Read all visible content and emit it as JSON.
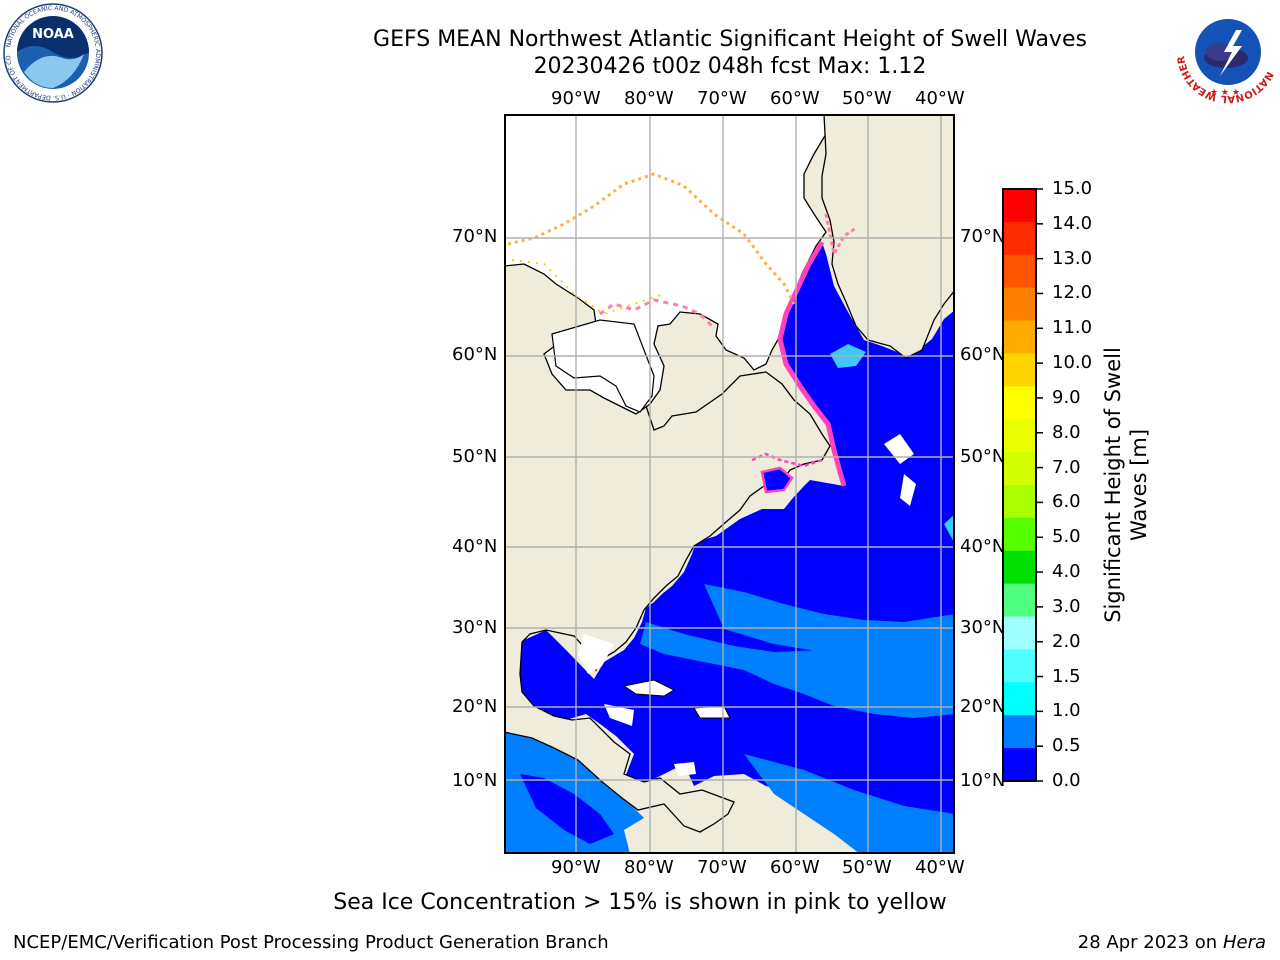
{
  "header": {
    "title_line1": "GEFS MEAN Northwest Atlantic Significant Height of Swell Waves",
    "title_line2": "20230426 t00z 048h fcst   Max: 1.12"
  },
  "logos": {
    "noaa": {
      "text": "NOAA",
      "ring_text": "NATIONAL OCEANIC AND ATMOSPHERIC ADMINISTRATION · U.S. DEPARTMENT OF COMMERCE"
    },
    "nws": {
      "ring_text": "NATIONAL WEATHER SERVICE"
    }
  },
  "map": {
    "lon_labels": [
      "90°W",
      "80°W",
      "70°W",
      "60°W",
      "50°W",
      "40°W"
    ],
    "lat_labels": [
      "70°N",
      "60°N",
      "50°N",
      "40°N",
      "30°N",
      "20°N",
      "10°N"
    ],
    "colors": {
      "land": "#efecdc",
      "ice_white": "#ffffff",
      "swell_low": "#0000ff",
      "swell_mid": "#0080ff",
      "gridline": "#b0b0b0",
      "ice_edge": [
        "#ff40c0",
        "#ff80a0",
        "#ffb040",
        "#ffd000"
      ]
    }
  },
  "colorbar": {
    "label_line1": "Significant Height of Swell",
    "label_line2": "Waves [m]",
    "ticks": [
      "15.0",
      "14.0",
      "13.0",
      "12.0",
      "11.0",
      "10.0",
      "9.0",
      "8.0",
      "7.0",
      "6.0",
      "5.0",
      "4.0",
      "3.0",
      "2.0",
      "1.5",
      "1.0",
      "0.5",
      "0.0"
    ],
    "colors_top_to_bottom": [
      "#ff0000",
      "#ff2a00",
      "#ff5500",
      "#ff8000",
      "#ffaa00",
      "#ffd400",
      "#ffff00",
      "#eaff00",
      "#d4ff00",
      "#aaff00",
      "#55ff00",
      "#00e000",
      "#50ff80",
      "#a0ffff",
      "#50ffff",
      "#00ffff",
      "#0080ff",
      "#0000ff"
    ]
  },
  "footer": {
    "caption": "Sea Ice Concentration > 15% is shown in pink to yellow",
    "credit_left": "NCEP/EMC/Verification Post Processing Product Generation Branch",
    "credit_date": "28 Apr 2023 on ",
    "credit_host": "Hera"
  }
}
